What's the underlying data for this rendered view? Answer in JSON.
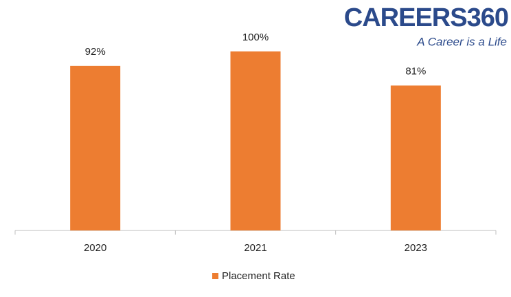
{
  "chart_data": {
    "type": "bar",
    "categories": [
      "2020",
      "2021",
      "2023"
    ],
    "series": [
      {
        "name": "Placement Rate",
        "color": "#ed7d31",
        "values": [
          92,
          100,
          81
        ],
        "value_labels": [
          "92%",
          "100%",
          "81%"
        ]
      }
    ],
    "legend": "bottom"
  },
  "logo": {
    "brand": "CAREERS360",
    "tagline": "A Career is a Life"
  }
}
